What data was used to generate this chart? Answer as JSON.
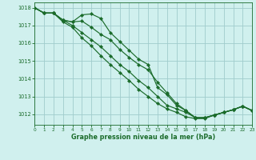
{
  "title": "Graphe pression niveau de la mer (hPa)",
  "bg_color": "#d0f0ee",
  "grid_color": "#a0cccc",
  "line_color": "#1a6b2a",
  "xlim": [
    0,
    23
  ],
  "ylim": [
    1011.4,
    1018.3
  ],
  "yticks": [
    1012,
    1013,
    1014,
    1015,
    1016,
    1017,
    1018
  ],
  "xticks": [
    0,
    1,
    2,
    3,
    4,
    5,
    6,
    7,
    8,
    9,
    10,
    11,
    12,
    13,
    14,
    15,
    16,
    17,
    18,
    19,
    20,
    21,
    22,
    23
  ],
  "line1": [
    1018.0,
    1017.7,
    1017.7,
    1017.3,
    1017.2,
    1017.6,
    1017.65,
    1017.4,
    1016.6,
    1016.1,
    1015.6,
    1015.1,
    1014.8,
    1013.5,
    1013.1,
    1012.5,
    1012.2,
    1011.8,
    1011.8,
    1011.95,
    1012.1,
    1012.25,
    1012.45,
    1012.2
  ],
  "line2": [
    1018.0,
    1017.7,
    1017.7,
    1017.3,
    1017.2,
    1017.25,
    1016.9,
    1016.5,
    1016.2,
    1015.65,
    1015.2,
    1014.8,
    1014.5,
    1013.8,
    1013.2,
    1012.6,
    1012.2,
    1011.8,
    1011.8,
    1011.95,
    1012.1,
    1012.25,
    1012.45,
    1012.2
  ],
  "line3": [
    1018.0,
    1017.7,
    1017.7,
    1017.3,
    1017.0,
    1016.6,
    1016.2,
    1015.8,
    1015.3,
    1014.8,
    1014.4,
    1013.9,
    1013.5,
    1013.0,
    1012.5,
    1012.3,
    1012.1,
    1011.8,
    1011.8,
    1011.95,
    1012.1,
    1012.25,
    1012.45,
    1012.2
  ],
  "line4": [
    1018.0,
    1017.7,
    1017.7,
    1017.2,
    1016.9,
    1016.3,
    1015.85,
    1015.3,
    1014.8,
    1014.35,
    1013.9,
    1013.4,
    1013.0,
    1012.6,
    1012.3,
    1012.1,
    1011.85,
    1011.75,
    1011.75,
    1011.95,
    1012.1,
    1012.25,
    1012.45,
    1012.2
  ]
}
